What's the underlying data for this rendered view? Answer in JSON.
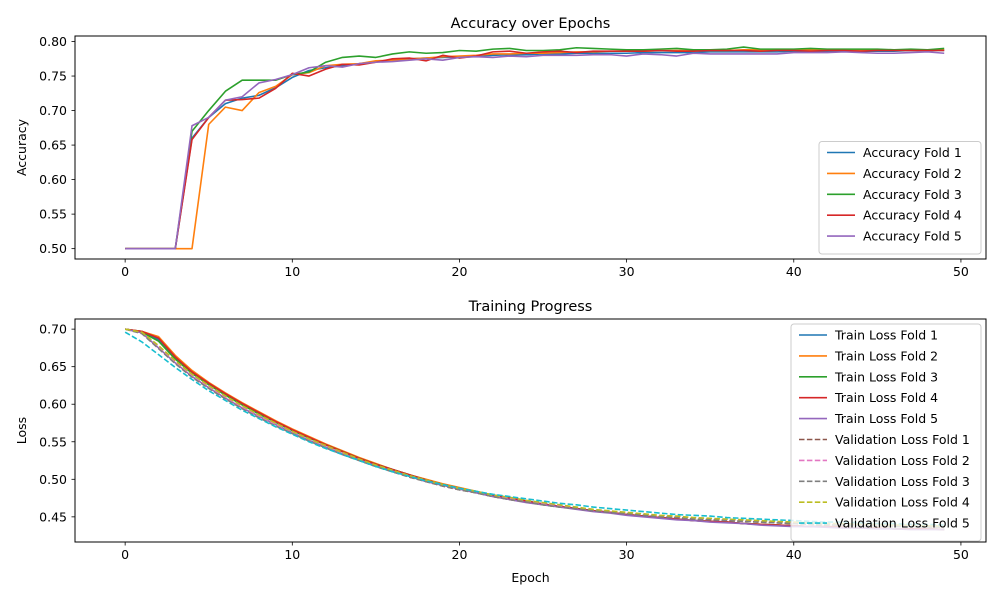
{
  "chart_data": [
    {
      "type": "line",
      "title": "Accuracy over Epochs",
      "xlabel": "",
      "ylabel": "Accuracy",
      "xlim": [
        -3,
        51.5
      ],
      "ylim": [
        0.485,
        0.808
      ],
      "xticks": [
        0,
        10,
        20,
        30,
        40,
        50
      ],
      "xtick_labels": [
        "0",
        "10",
        "20",
        "30",
        "40",
        "50"
      ],
      "yticks": [
        0.5,
        0.55,
        0.6,
        0.65,
        0.7,
        0.75,
        0.8
      ],
      "ytick_labels": [
        "0.50",
        "0.55",
        "0.60",
        "0.65",
        "0.70",
        "0.75",
        "0.80"
      ],
      "grid": false,
      "legend_position": "bottom-right",
      "x": [
        0,
        1,
        2,
        3,
        4,
        5,
        6,
        7,
        8,
        9,
        10,
        11,
        12,
        13,
        14,
        15,
        16,
        17,
        18,
        19,
        20,
        21,
        22,
        23,
        24,
        25,
        26,
        27,
        28,
        29,
        30,
        31,
        32,
        33,
        34,
        35,
        36,
        37,
        38,
        39,
        40,
        41,
        42,
        43,
        44,
        45,
        46,
        47,
        48,
        49
      ],
      "series": [
        {
          "name": "Accuracy Fold 1",
          "color": "#1f77b4",
          "style": "solid",
          "values": [
            0.5,
            0.5,
            0.5,
            0.5,
            0.66,
            0.69,
            0.71,
            0.718,
            0.722,
            0.733,
            0.748,
            0.758,
            0.762,
            0.765,
            0.768,
            0.771,
            0.773,
            0.775,
            0.776,
            0.777,
            0.778,
            0.779,
            0.78,
            0.781,
            0.781,
            0.782,
            0.782,
            0.783,
            0.783,
            0.783,
            0.783,
            0.784,
            0.784,
            0.784,
            0.784,
            0.785,
            0.785,
            0.785,
            0.785,
            0.785,
            0.786,
            0.786,
            0.786,
            0.786,
            0.786,
            0.786,
            0.786,
            0.787,
            0.787,
            0.787
          ]
        },
        {
          "name": "Accuracy Fold 2",
          "color": "#ff7f0e",
          "style": "solid",
          "values": [
            0.5,
            0.5,
            0.5,
            0.5,
            0.5,
            0.68,
            0.705,
            0.7,
            0.726,
            0.735,
            0.752,
            0.755,
            0.765,
            0.767,
            0.768,
            0.772,
            0.773,
            0.775,
            0.776,
            0.778,
            0.779,
            0.78,
            0.782,
            0.782,
            0.783,
            0.783,
            0.784,
            0.785,
            0.785,
            0.786,
            0.786,
            0.786,
            0.787,
            0.787,
            0.787,
            0.787,
            0.787,
            0.788,
            0.788,
            0.788,
            0.788,
            0.788,
            0.788,
            0.788,
            0.788,
            0.788,
            0.788,
            0.788,
            0.788,
            0.788
          ]
        },
        {
          "name": "Accuracy Fold 3",
          "color": "#2ca02c",
          "style": "solid",
          "values": [
            0.5,
            0.5,
            0.5,
            0.5,
            0.67,
            0.7,
            0.728,
            0.744,
            0.744,
            0.744,
            0.752,
            0.756,
            0.77,
            0.777,
            0.779,
            0.777,
            0.782,
            0.785,
            0.783,
            0.784,
            0.787,
            0.786,
            0.789,
            0.79,
            0.787,
            0.787,
            0.788,
            0.791,
            0.79,
            0.789,
            0.788,
            0.788,
            0.789,
            0.79,
            0.788,
            0.788,
            0.789,
            0.792,
            0.789,
            0.789,
            0.789,
            0.79,
            0.789,
            0.789,
            0.789,
            0.789,
            0.788,
            0.789,
            0.788,
            0.79
          ]
        },
        {
          "name": "Accuracy Fold 4",
          "color": "#d62728",
          "style": "solid",
          "values": [
            0.5,
            0.5,
            0.5,
            0.5,
            0.658,
            0.69,
            0.715,
            0.716,
            0.718,
            0.732,
            0.754,
            0.75,
            0.76,
            0.767,
            0.766,
            0.77,
            0.775,
            0.776,
            0.772,
            0.78,
            0.776,
            0.779,
            0.785,
            0.786,
            0.783,
            0.785,
            0.786,
            0.784,
            0.786,
            0.786,
            0.786,
            0.786,
            0.787,
            0.786,
            0.786,
            0.787,
            0.787,
            0.787,
            0.786,
            0.787,
            0.787,
            0.786,
            0.787,
            0.787,
            0.786,
            0.787,
            0.787,
            0.787,
            0.787,
            0.787
          ]
        },
        {
          "name": "Accuracy Fold 5",
          "color": "#9467bd",
          "style": "solid",
          "values": [
            0.5,
            0.5,
            0.5,
            0.5,
            0.678,
            0.69,
            0.715,
            0.72,
            0.74,
            0.745,
            0.752,
            0.762,
            0.765,
            0.763,
            0.768,
            0.77,
            0.771,
            0.773,
            0.775,
            0.773,
            0.777,
            0.778,
            0.777,
            0.779,
            0.778,
            0.78,
            0.78,
            0.78,
            0.781,
            0.781,
            0.779,
            0.782,
            0.781,
            0.779,
            0.783,
            0.782,
            0.782,
            0.782,
            0.782,
            0.782,
            0.784,
            0.784,
            0.784,
            0.785,
            0.784,
            0.783,
            0.783,
            0.784,
            0.785,
            0.783
          ]
        }
      ]
    },
    {
      "type": "line",
      "title": "Training Progress",
      "xlabel": "Epoch",
      "ylabel": "Loss",
      "xlim": [
        -3,
        51.5
      ],
      "ylim": [
        0.4165,
        0.7135
      ],
      "xticks": [
        0,
        10,
        20,
        30,
        40,
        50
      ],
      "xtick_labels": [
        "0",
        "10",
        "20",
        "30",
        "40",
        "50"
      ],
      "yticks": [
        0.45,
        0.5,
        0.55,
        0.6,
        0.65,
        0.7
      ],
      "ytick_labels": [
        "0.45",
        "0.50",
        "0.55",
        "0.60",
        "0.65",
        "0.70"
      ],
      "grid": false,
      "legend_position": "top-right",
      "x": [
        0,
        1,
        2,
        3,
        4,
        5,
        6,
        7,
        8,
        9,
        10,
        11,
        12,
        13,
        14,
        15,
        16,
        17,
        18,
        19,
        20,
        21,
        22,
        23,
        24,
        25,
        26,
        27,
        28,
        29,
        30,
        31,
        32,
        33,
        34,
        35,
        36,
        37,
        38,
        39,
        40,
        41,
        42,
        43,
        44,
        45,
        46,
        47,
        48,
        49
      ],
      "series": [
        {
          "name": "Train Loss Fold 1",
          "color": "#1f77b4",
          "style": "solid",
          "values": [
            0.7,
            0.697,
            0.686,
            0.662,
            0.642,
            0.627,
            0.613,
            0.6,
            0.588,
            0.577,
            0.566,
            0.556,
            0.546,
            0.537,
            0.528,
            0.52,
            0.513,
            0.506,
            0.499,
            0.493,
            0.488,
            0.483,
            0.479,
            0.475,
            0.471,
            0.467,
            0.464,
            0.461,
            0.458,
            0.456,
            0.453,
            0.451,
            0.449,
            0.447,
            0.445,
            0.444,
            0.443,
            0.441,
            0.44,
            0.439,
            0.438,
            0.437,
            0.437,
            0.436,
            0.435,
            0.435,
            0.434,
            0.434,
            0.434,
            0.433
          ]
        },
        {
          "name": "Train Loss Fold 2",
          "color": "#ff7f0e",
          "style": "solid",
          "values": [
            0.7,
            0.697,
            0.69,
            0.665,
            0.645,
            0.629,
            0.615,
            0.602,
            0.59,
            0.578,
            0.567,
            0.557,
            0.547,
            0.538,
            0.529,
            0.521,
            0.513,
            0.506,
            0.5,
            0.494,
            0.489,
            0.484,
            0.479,
            0.475,
            0.471,
            0.467,
            0.464,
            0.461,
            0.458,
            0.456,
            0.453,
            0.451,
            0.449,
            0.447,
            0.445,
            0.444,
            0.443,
            0.441,
            0.44,
            0.439,
            0.438,
            0.437,
            0.437,
            0.436,
            0.435,
            0.435,
            0.434,
            0.434,
            0.434,
            0.433
          ]
        },
        {
          "name": "Train Loss Fold 3",
          "color": "#2ca02c",
          "style": "solid",
          "values": [
            0.7,
            0.696,
            0.684,
            0.66,
            0.641,
            0.626,
            0.612,
            0.599,
            0.587,
            0.576,
            0.565,
            0.555,
            0.546,
            0.537,
            0.528,
            0.52,
            0.513,
            0.506,
            0.499,
            0.493,
            0.488,
            0.483,
            0.479,
            0.475,
            0.471,
            0.467,
            0.464,
            0.461,
            0.458,
            0.456,
            0.453,
            0.451,
            0.449,
            0.447,
            0.445,
            0.444,
            0.443,
            0.441,
            0.44,
            0.439,
            0.438,
            0.437,
            0.437,
            0.436,
            0.435,
            0.435,
            0.434,
            0.434,
            0.434,
            0.433
          ]
        },
        {
          "name": "Train Loss Fold 4",
          "color": "#d62728",
          "style": "solid",
          "values": [
            0.7,
            0.697,
            0.688,
            0.663,
            0.643,
            0.628,
            0.614,
            0.601,
            0.589,
            0.577,
            0.566,
            0.556,
            0.546,
            0.537,
            0.528,
            0.52,
            0.513,
            0.506,
            0.499,
            0.493,
            0.488,
            0.483,
            0.479,
            0.475,
            0.471,
            0.467,
            0.464,
            0.461,
            0.458,
            0.456,
            0.453,
            0.451,
            0.449,
            0.447,
            0.445,
            0.444,
            0.443,
            0.441,
            0.44,
            0.439,
            0.438,
            0.437,
            0.437,
            0.436,
            0.435,
            0.435,
            0.434,
            0.434,
            0.434,
            0.433
          ]
        },
        {
          "name": "Train Loss Fold 5",
          "color": "#9467bd",
          "style": "solid",
          "values": [
            0.7,
            0.695,
            0.675,
            0.655,
            0.637,
            0.622,
            0.608,
            0.595,
            0.584,
            0.573,
            0.562,
            0.552,
            0.543,
            0.534,
            0.526,
            0.518,
            0.511,
            0.504,
            0.497,
            0.492,
            0.487,
            0.482,
            0.477,
            0.473,
            0.469,
            0.466,
            0.463,
            0.46,
            0.457,
            0.455,
            0.452,
            0.45,
            0.448,
            0.446,
            0.445,
            0.443,
            0.442,
            0.441,
            0.439,
            0.438,
            0.437,
            0.437,
            0.436,
            0.435,
            0.435,
            0.434,
            0.434,
            0.433,
            0.433,
            0.433
          ]
        },
        {
          "name": "Validation Loss Fold 1",
          "color": "#8c564b",
          "style": "dashed",
          "values": [
            0.7,
            0.695,
            0.675,
            0.655,
            0.637,
            0.622,
            0.608,
            0.595,
            0.583,
            0.572,
            0.561,
            0.551,
            0.542,
            0.533,
            0.525,
            0.517,
            0.51,
            0.503,
            0.497,
            0.491,
            0.486,
            0.482,
            0.477,
            0.473,
            0.47,
            0.466,
            0.463,
            0.461,
            0.458,
            0.456,
            0.454,
            0.452,
            0.45,
            0.449,
            0.447,
            0.446,
            0.445,
            0.444,
            0.443,
            0.442,
            0.441,
            0.44,
            0.439,
            0.439,
            0.438,
            0.438,
            0.437,
            0.437,
            0.436,
            0.436
          ]
        },
        {
          "name": "Validation Loss Fold 2",
          "color": "#e377c2",
          "style": "dashed",
          "values": [
            0.7,
            0.695,
            0.676,
            0.656,
            0.638,
            0.623,
            0.609,
            0.596,
            0.584,
            0.573,
            0.562,
            0.552,
            0.543,
            0.534,
            0.526,
            0.518,
            0.511,
            0.504,
            0.498,
            0.492,
            0.487,
            0.483,
            0.478,
            0.474,
            0.471,
            0.467,
            0.464,
            0.462,
            0.459,
            0.457,
            0.455,
            0.453,
            0.451,
            0.45,
            0.448,
            0.447,
            0.446,
            0.445,
            0.444,
            0.443,
            0.442,
            0.441,
            0.44,
            0.44,
            0.439,
            0.439,
            0.438,
            0.438,
            0.437,
            0.437
          ]
        },
        {
          "name": "Validation Loss Fold 3",
          "color": "#7f7f7f",
          "style": "dashed",
          "values": [
            0.7,
            0.694,
            0.674,
            0.654,
            0.636,
            0.621,
            0.607,
            0.594,
            0.582,
            0.571,
            0.561,
            0.551,
            0.542,
            0.533,
            0.525,
            0.517,
            0.51,
            0.503,
            0.497,
            0.491,
            0.486,
            0.482,
            0.477,
            0.473,
            0.47,
            0.466,
            0.463,
            0.461,
            0.458,
            0.456,
            0.454,
            0.452,
            0.45,
            0.449,
            0.447,
            0.446,
            0.445,
            0.444,
            0.443,
            0.442,
            0.441,
            0.44,
            0.439,
            0.439,
            0.438,
            0.438,
            0.437,
            0.437,
            0.436,
            0.436
          ]
        },
        {
          "name": "Validation Loss Fold 4",
          "color": "#bcbd22",
          "style": "dashed",
          "values": [
            0.7,
            0.696,
            0.678,
            0.658,
            0.64,
            0.625,
            0.611,
            0.598,
            0.586,
            0.575,
            0.564,
            0.554,
            0.545,
            0.536,
            0.527,
            0.519,
            0.512,
            0.505,
            0.499,
            0.493,
            0.488,
            0.484,
            0.479,
            0.476,
            0.472,
            0.469,
            0.466,
            0.463,
            0.46,
            0.458,
            0.456,
            0.454,
            0.452,
            0.451,
            0.449,
            0.448,
            0.447,
            0.446,
            0.445,
            0.444,
            0.443,
            0.442,
            0.441,
            0.441,
            0.44,
            0.44,
            0.439,
            0.439,
            0.438,
            0.438
          ]
        },
        {
          "name": "Validation Loss Fold 5",
          "color": "#17becf",
          "style": "dashed",
          "values": [
            0.696,
            0.683,
            0.666,
            0.649,
            0.633,
            0.618,
            0.605,
            0.592,
            0.581,
            0.57,
            0.56,
            0.55,
            0.541,
            0.533,
            0.525,
            0.517,
            0.51,
            0.504,
            0.498,
            0.493,
            0.488,
            0.484,
            0.48,
            0.477,
            0.474,
            0.471,
            0.468,
            0.466,
            0.463,
            0.461,
            0.459,
            0.457,
            0.455,
            0.453,
            0.452,
            0.451,
            0.449,
            0.448,
            0.447,
            0.446,
            0.445,
            0.444,
            0.443,
            0.443,
            0.442,
            0.441,
            0.441,
            0.44,
            0.44,
            0.439
          ]
        }
      ]
    }
  ]
}
